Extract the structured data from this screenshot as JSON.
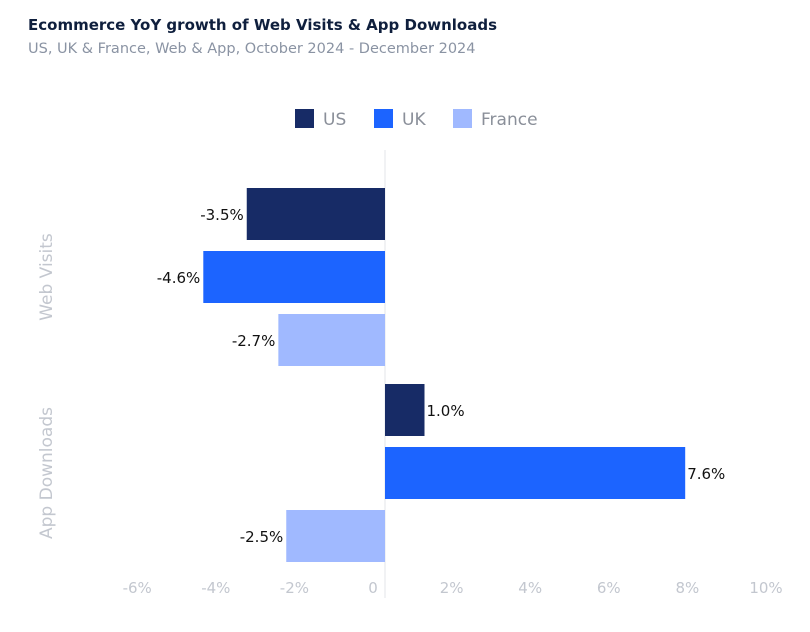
{
  "chart_data": {
    "type": "bar",
    "orientation": "horizontal",
    "title": "Ecommerce YoY growth of Web Visits & App Downloads",
    "subtitle": "US, UK & France, Web & App, October 2024 - December 2024",
    "categories": [
      "Web Visits",
      "App Downloads"
    ],
    "series": [
      {
        "name": "US",
        "color": "#172b66",
        "values": [
          -3.5,
          1.0
        ],
        "labels": [
          "-3.5%",
          "1.0%"
        ]
      },
      {
        "name": "UK",
        "color": "#1c64ff",
        "values": [
          -4.6,
          7.6
        ],
        "labels": [
          "-4.6%",
          "7.6%"
        ]
      },
      {
        "name": "France",
        "color": "#a0b9ff",
        "values": [
          -2.7,
          -2.5
        ],
        "labels": [
          "-2.7%",
          "-2.5%"
        ]
      }
    ],
    "xlim": [
      -6,
      10
    ],
    "xticks": [
      -6,
      -4,
      -2,
      0,
      2,
      4,
      6,
      8,
      10
    ],
    "xtick_labels": [
      "-6%",
      "-4%",
      "-2%",
      "0",
      "2%",
      "4%",
      "6%",
      "8%",
      "10%"
    ],
    "legend": "top",
    "grid": false
  }
}
